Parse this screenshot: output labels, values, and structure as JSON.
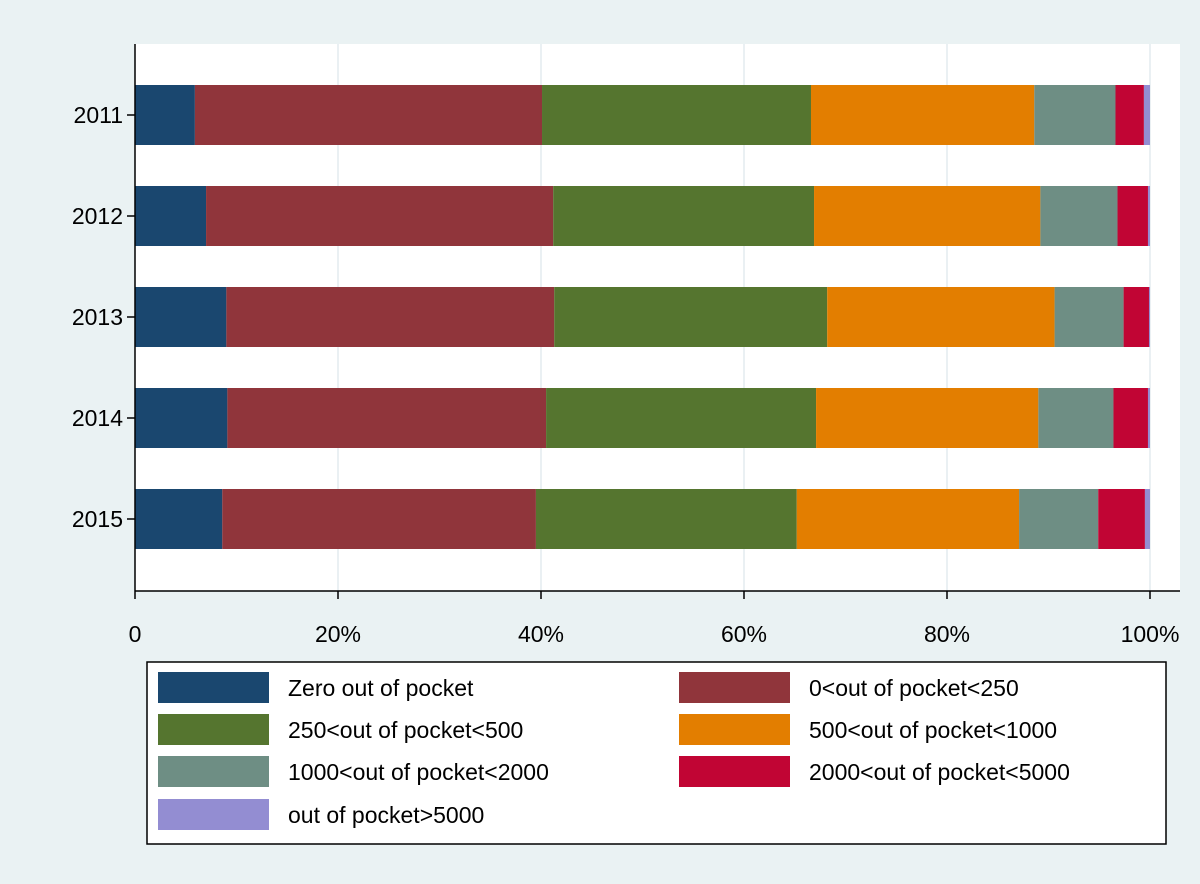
{
  "chart_data": {
    "type": "bar",
    "orientation": "horizontal",
    "stacked": true,
    "percent": true,
    "categories": [
      "2011",
      "2012",
      "2013",
      "2014",
      "2015"
    ],
    "series": [
      {
        "name": "Zero out of pocket",
        "color": "#1a476f",
        "values": [
          5.9,
          7.0,
          9.0,
          9.1,
          8.6
        ]
      },
      {
        "name": "0<out of pocket<250",
        "color": "#90353b",
        "values": [
          34.2,
          34.2,
          32.3,
          31.4,
          30.9
        ]
      },
      {
        "name": "250<out of pocket<500",
        "color": "#55752f",
        "values": [
          26.5,
          25.7,
          26.9,
          26.6,
          25.7
        ]
      },
      {
        "name": "500<out of pocket<1000",
        "color": "#e37e00",
        "values": [
          22.0,
          22.3,
          22.4,
          21.9,
          21.9
        ]
      },
      {
        "name": "1000<out of pocket<2000",
        "color": "#6e8e84",
        "values": [
          8.0,
          7.6,
          6.8,
          7.4,
          7.8
        ]
      },
      {
        "name": "2000<out of pocket<5000",
        "color": "#c10534",
        "values": [
          2.8,
          3.0,
          2.5,
          3.4,
          4.6
        ]
      },
      {
        "name": "out of pocket>5000",
        "color": "#938dd2",
        "values": [
          0.6,
          0.2,
          0.1,
          0.2,
          0.5
        ]
      }
    ],
    "xlim": [
      0,
      100
    ],
    "x_ticks": [
      0,
      20,
      40,
      60,
      80,
      100
    ],
    "x_tick_labels": [
      "0",
      "20%",
      "40%",
      "60%",
      "80%",
      "100%"
    ],
    "grid": true,
    "legend_position": "bottom",
    "legend_columns": 2
  }
}
